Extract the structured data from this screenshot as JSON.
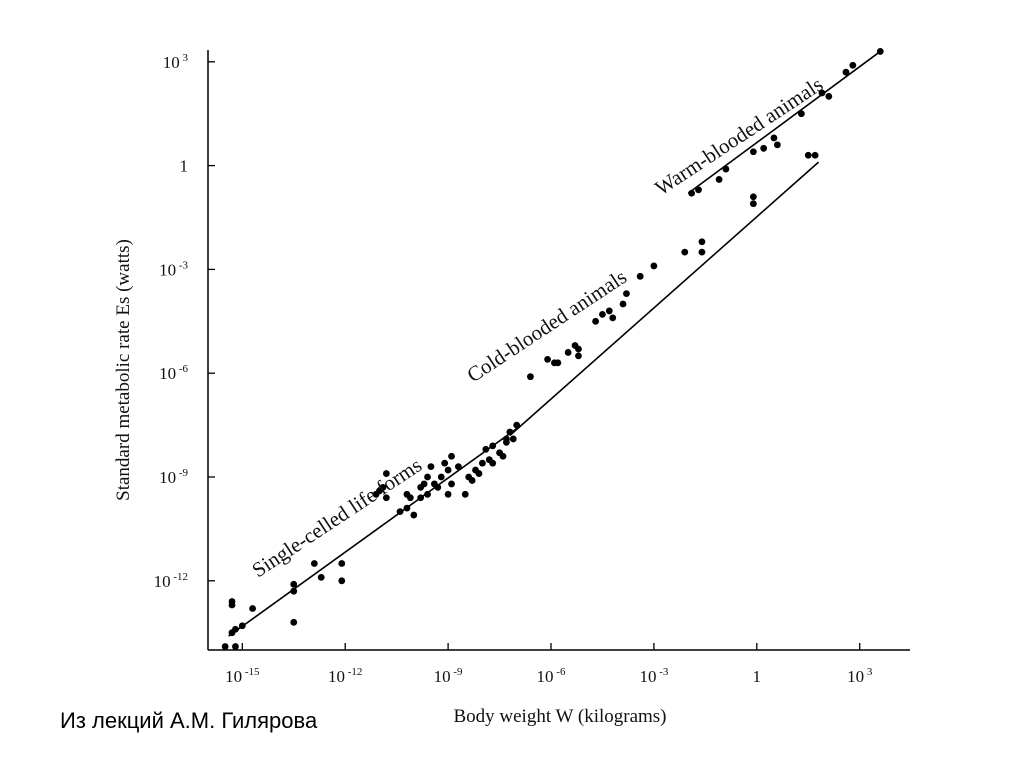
{
  "caption": "Из лекций А.М. Гилярова",
  "chart_data": {
    "type": "scatter",
    "xscale": "log",
    "yscale": "log",
    "xlabel": "Body weight W (kilograms)",
    "ylabel": "Standard metabolic rate Es (watts)",
    "xlim": [
      1e-16,
      10000.0
    ],
    "ylim": [
      1e-14,
      10000.0
    ],
    "x_ticks": [
      {
        "value": 1e-15,
        "label": "10",
        "exp": "-15"
      },
      {
        "value": 1e-12,
        "label": "10",
        "exp": "-12"
      },
      {
        "value": 1e-09,
        "label": "10",
        "exp": "-9"
      },
      {
        "value": 1e-06,
        "label": "10",
        "exp": "-6"
      },
      {
        "value": 0.001,
        "label": "10",
        "exp": "-3"
      },
      {
        "value": 1,
        "label": "1",
        "exp": ""
      },
      {
        "value": 1000.0,
        "label": "10",
        "exp": "3"
      }
    ],
    "y_ticks": [
      {
        "value": 1000.0,
        "label": "10",
        "exp": "3"
      },
      {
        "value": 1,
        "label": "1",
        "exp": ""
      },
      {
        "value": 0.001,
        "label": "10",
        "exp": "-3"
      },
      {
        "value": 1e-06,
        "label": "10",
        "exp": "-6"
      },
      {
        "value": 1e-09,
        "label": "10",
        "exp": "-9"
      },
      {
        "value": 1e-12,
        "label": "10",
        "exp": "-12"
      }
    ],
    "annotations": [
      "Single-celled life forms",
      "Cold-blooded animals",
      "Warm-blooded animals"
    ],
    "series": [
      {
        "name": "Single-celled life forms",
        "line": [
          [
            -15.4,
            -13.6
          ],
          [
            -7.0,
            -7.6
          ]
        ],
        "points": [
          [
            -15.5,
            -13.9
          ],
          [
            -15.2,
            -13.9
          ],
          [
            -15.3,
            -13.5
          ],
          [
            -15.2,
            -13.4
          ],
          [
            -15.0,
            -13.3
          ],
          [
            -15.3,
            -12.7
          ],
          [
            -15.3,
            -12.6
          ],
          [
            -14.7,
            -12.8
          ],
          [
            -13.5,
            -13.2
          ],
          [
            -13.5,
            -12.3
          ],
          [
            -13.5,
            -12.1
          ],
          [
            -12.9,
            -11.5
          ],
          [
            -12.7,
            -11.9
          ],
          [
            -12.1,
            -11.5
          ],
          [
            -12.1,
            -12.0
          ],
          [
            -11.1,
            -9.5
          ],
          [
            -11.0,
            -9.4
          ],
          [
            -10.8,
            -9.6
          ],
          [
            -10.9,
            -9.3
          ],
          [
            -10.8,
            -8.9
          ],
          [
            -10.4,
            -10.0
          ],
          [
            -10.2,
            -9.9
          ],
          [
            -10.2,
            -9.5
          ],
          [
            -10.1,
            -9.6
          ],
          [
            -10.0,
            -10.1
          ],
          [
            -9.8,
            -9.3
          ],
          [
            -9.6,
            -9.5
          ],
          [
            -9.8,
            -9.6
          ],
          [
            -9.7,
            -9.2
          ],
          [
            -9.6,
            -9.0
          ],
          [
            -9.5,
            -8.7
          ],
          [
            -9.3,
            -9.3
          ],
          [
            -9.2,
            -9.0
          ],
          [
            -9.1,
            -8.6
          ],
          [
            -9.0,
            -8.8
          ],
          [
            -8.9,
            -9.2
          ],
          [
            -8.7,
            -8.7
          ],
          [
            -8.5,
            -9.5
          ],
          [
            -8.4,
            -9.0
          ],
          [
            -8.3,
            -9.1
          ],
          [
            -8.1,
            -8.9
          ],
          [
            -8.0,
            -8.6
          ],
          [
            -7.9,
            -8.2
          ],
          [
            -8.2,
            -8.8
          ],
          [
            -7.8,
            -8.5
          ],
          [
            -7.7,
            -8.1
          ],
          [
            -7.7,
            -8.6
          ],
          [
            -7.5,
            -8.3
          ],
          [
            -7.4,
            -8.4
          ],
          [
            -7.3,
            -8.0
          ],
          [
            -7.3,
            -7.9
          ],
          [
            -7.2,
            -7.7
          ],
          [
            -7.1,
            -7.9
          ],
          [
            -7.0,
            -7.5
          ],
          [
            -9.0,
            -9.5
          ],
          [
            -9.4,
            -9.2
          ],
          [
            -8.9,
            -8.4
          ]
        ]
      },
      {
        "name": "Cold-blooded animals",
        "line": [
          [
            -7.2,
            -7.8
          ],
          [
            1.8,
            0.1
          ]
        ],
        "points": [
          [
            -6.6,
            -6.1
          ],
          [
            -6.1,
            -5.6
          ],
          [
            -5.9,
            -5.7
          ],
          [
            -5.8,
            -5.7
          ],
          [
            -5.5,
            -5.4
          ],
          [
            -5.3,
            -5.2
          ],
          [
            -5.2,
            -5.3
          ],
          [
            -5.2,
            -5.5
          ],
          [
            -4.7,
            -4.5
          ],
          [
            -4.5,
            -4.3
          ],
          [
            -4.3,
            -4.2
          ],
          [
            -4.2,
            -4.4
          ],
          [
            -3.9,
            -4.0
          ],
          [
            -3.8,
            -3.7
          ],
          [
            -3.4,
            -3.2
          ],
          [
            -3.0,
            -2.9
          ],
          [
            -2.1,
            -2.5
          ],
          [
            -1.6,
            -2.2
          ],
          [
            -1.6,
            -2.5
          ],
          [
            -0.1,
            -0.9
          ],
          [
            -0.1,
            -1.1
          ],
          [
            1.5,
            0.3
          ],
          [
            1.7,
            0.3
          ]
        ]
      },
      {
        "name": "Warm-blooded animals",
        "line": [
          [
            -2.0,
            -0.8
          ],
          [
            3.6,
            3.3
          ]
        ],
        "points": [
          [
            -1.9,
            -0.8
          ],
          [
            -1.7,
            -0.7
          ],
          [
            -1.1,
            -0.4
          ],
          [
            -0.9,
            -0.1
          ],
          [
            -0.1,
            0.4
          ],
          [
            0.2,
            0.5
          ],
          [
            0.5,
            0.8
          ],
          [
            0.6,
            0.6
          ],
          [
            1.3,
            1.5
          ],
          [
            1.9,
            2.1
          ],
          [
            2.1,
            2.0
          ],
          [
            2.6,
            2.7
          ],
          [
            2.8,
            2.9
          ],
          [
            3.6,
            3.3
          ]
        ]
      }
    ]
  }
}
